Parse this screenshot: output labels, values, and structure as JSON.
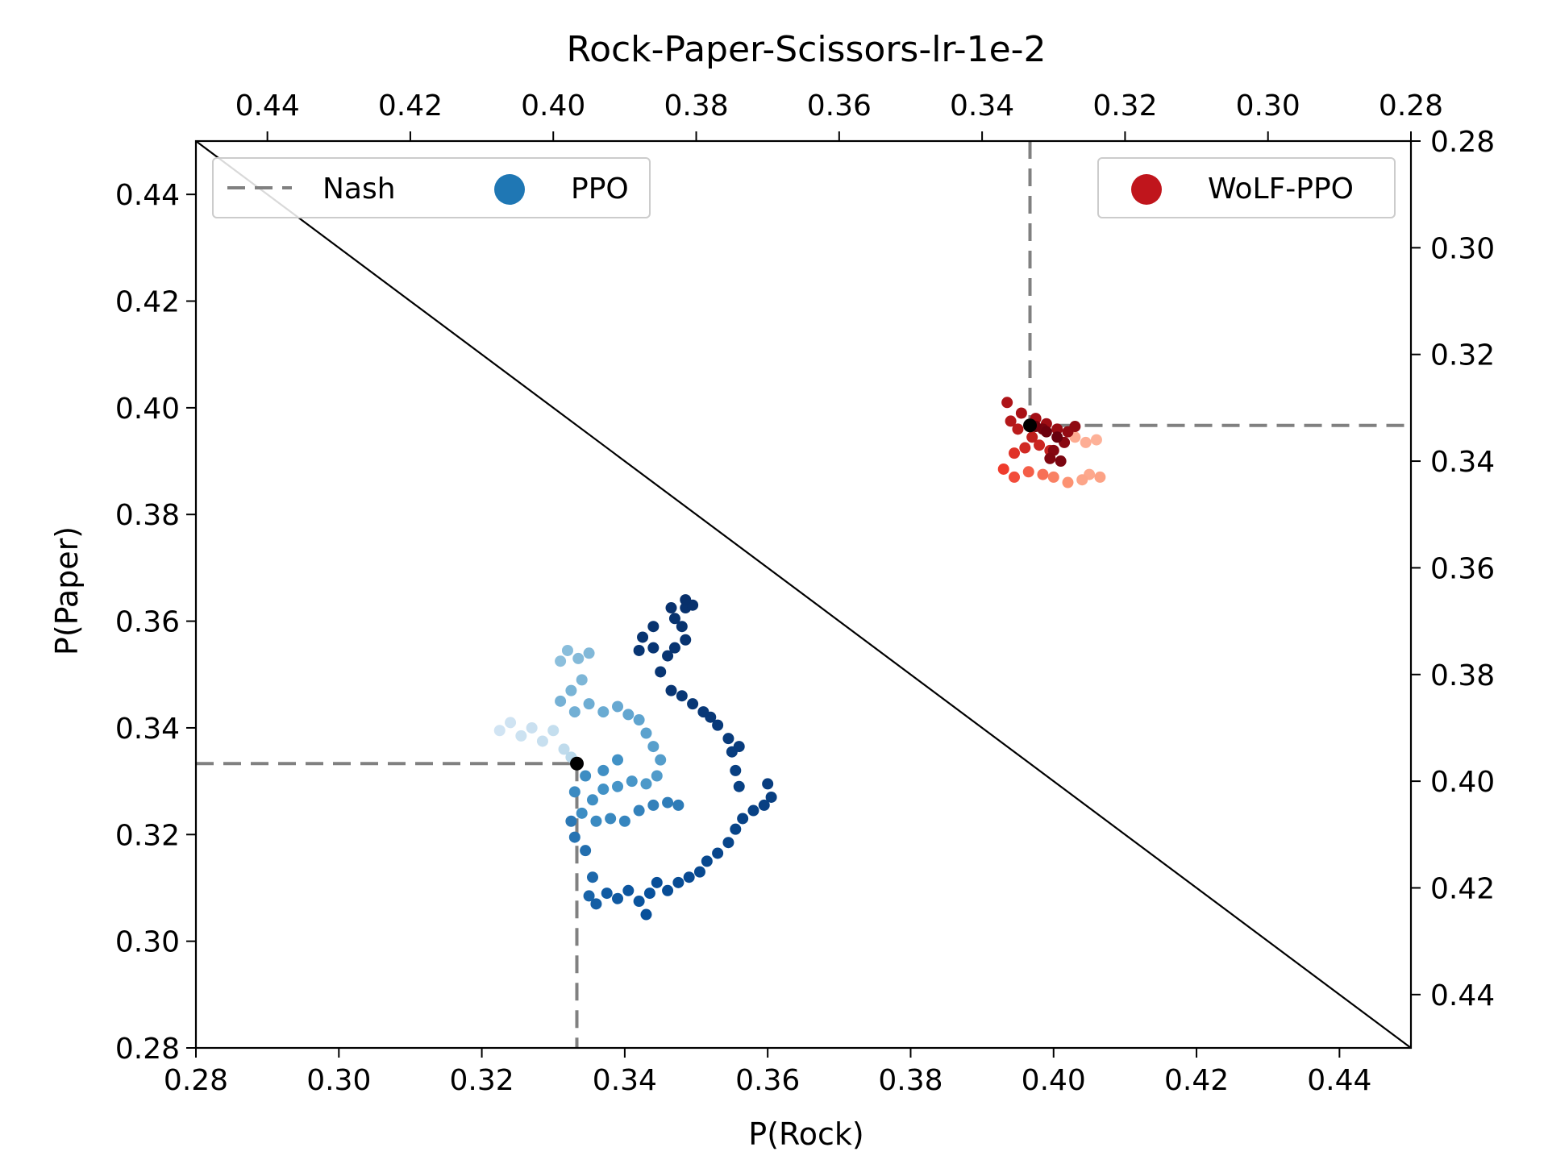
{
  "chart_data": {
    "type": "scatter",
    "title": "Rock-Paper-Scissors-lr-1e-2",
    "xlabel": "P(Rock)",
    "ylabel": "P(Paper)",
    "xlim": [
      0.28,
      0.45
    ],
    "ylim": [
      0.28,
      0.45
    ],
    "x_ticks": [
      "0.28",
      "0.30",
      "0.32",
      "0.34",
      "0.36",
      "0.38",
      "0.40",
      "0.42",
      "0.44"
    ],
    "y_ticks": [
      "0.28",
      "0.30",
      "0.32",
      "0.34",
      "0.36",
      "0.38",
      "0.40",
      "0.42",
      "0.44"
    ],
    "top_axis": {
      "ticks": [
        "0.44",
        "0.42",
        "0.40",
        "0.38",
        "0.36",
        "0.34",
        "0.32",
        "0.30",
        "0.28"
      ],
      "description": "secondary axis, value = 1 - x - 0.27 mapping reversed"
    },
    "right_axis": {
      "ticks": [
        "0.28",
        "0.30",
        "0.32",
        "0.34",
        "0.36",
        "0.38",
        "0.40",
        "0.42",
        "0.44"
      ],
      "description": "secondary axis reversed"
    },
    "grid": false,
    "legend_left": {
      "placement": "upper-left",
      "entries": [
        "Nash",
        "PPO"
      ]
    },
    "legend_right": {
      "placement": "upper-right",
      "entries": [
        "WoLF-PPO"
      ]
    },
    "colors": {
      "ppo": "#1f77b4",
      "wolf": "#c0151c",
      "nash": "#808080",
      "diagonal": "#000000",
      "marker": "#000000"
    },
    "nash_lines": [
      {
        "player": "PPO",
        "x": 0.3333,
        "y": 0.3333
      },
      {
        "player": "WoLF-PPO",
        "x": 0.3967,
        "y": 0.3967
      }
    ],
    "diagonal": [
      [
        0.28,
        0.45
      ],
      [
        0.45,
        0.28
      ]
    ],
    "markers": [
      {
        "series": "PPO",
        "x": 0.3333,
        "y": 0.3333
      },
      {
        "series": "WoLF-PPO",
        "x": 0.3967,
        "y": 0.3967
      }
    ],
    "series": [
      {
        "name": "PPO",
        "color_scale": "Blues",
        "points": [
          [
            0.3225,
            0.3395,
            0.05
          ],
          [
            0.324,
            0.341,
            0.06
          ],
          [
            0.3255,
            0.3385,
            0.07
          ],
          [
            0.327,
            0.34,
            0.08
          ],
          [
            0.3285,
            0.3375,
            0.09
          ],
          [
            0.33,
            0.3395,
            0.1
          ],
          [
            0.3315,
            0.336,
            0.12
          ],
          [
            0.3325,
            0.3345,
            0.14
          ],
          [
            0.331,
            0.3525,
            0.3
          ],
          [
            0.332,
            0.3545,
            0.31
          ],
          [
            0.3335,
            0.353,
            0.32
          ],
          [
            0.335,
            0.354,
            0.33
          ],
          [
            0.334,
            0.349,
            0.34
          ],
          [
            0.3325,
            0.347,
            0.35
          ],
          [
            0.331,
            0.345,
            0.36
          ],
          [
            0.333,
            0.343,
            0.37
          ],
          [
            0.335,
            0.3445,
            0.38
          ],
          [
            0.337,
            0.343,
            0.39
          ],
          [
            0.339,
            0.344,
            0.4
          ],
          [
            0.3405,
            0.3425,
            0.41
          ],
          [
            0.342,
            0.3415,
            0.42
          ],
          [
            0.343,
            0.339,
            0.43
          ],
          [
            0.344,
            0.3365,
            0.44
          ],
          [
            0.345,
            0.334,
            0.45
          ],
          [
            0.3445,
            0.331,
            0.46
          ],
          [
            0.343,
            0.3295,
            0.47
          ],
          [
            0.341,
            0.33,
            0.48
          ],
          [
            0.339,
            0.329,
            0.49
          ],
          [
            0.337,
            0.3285,
            0.5
          ],
          [
            0.3355,
            0.3265,
            0.51
          ],
          [
            0.334,
            0.324,
            0.52
          ],
          [
            0.336,
            0.3225,
            0.53
          ],
          [
            0.338,
            0.323,
            0.54
          ],
          [
            0.34,
            0.3225,
            0.55
          ],
          [
            0.342,
            0.3245,
            0.56
          ],
          [
            0.344,
            0.3255,
            0.57
          ],
          [
            0.346,
            0.326,
            0.58
          ],
          [
            0.3475,
            0.3255,
            0.59
          ],
          [
            0.339,
            0.334,
            0.5
          ],
          [
            0.337,
            0.332,
            0.51
          ],
          [
            0.3345,
            0.331,
            0.52
          ],
          [
            0.333,
            0.328,
            0.53
          ],
          [
            0.3325,
            0.3225,
            0.6
          ],
          [
            0.333,
            0.3195,
            0.62
          ],
          [
            0.3345,
            0.317,
            0.64
          ],
          [
            0.3355,
            0.312,
            0.66
          ],
          [
            0.335,
            0.3085,
            0.68
          ],
          [
            0.336,
            0.307,
            0.7
          ],
          [
            0.3375,
            0.309,
            0.71
          ],
          [
            0.339,
            0.308,
            0.72
          ],
          [
            0.3405,
            0.3095,
            0.73
          ],
          [
            0.342,
            0.3075,
            0.74
          ],
          [
            0.3435,
            0.309,
            0.75
          ],
          [
            0.343,
            0.305,
            0.76
          ],
          [
            0.3445,
            0.311,
            0.77
          ],
          [
            0.346,
            0.3095,
            0.78
          ],
          [
            0.3475,
            0.311,
            0.79
          ],
          [
            0.349,
            0.312,
            0.8
          ],
          [
            0.3505,
            0.313,
            0.81
          ],
          [
            0.3515,
            0.315,
            0.82
          ],
          [
            0.353,
            0.3165,
            0.83
          ],
          [
            0.3545,
            0.3185,
            0.84
          ],
          [
            0.3555,
            0.321,
            0.85
          ],
          [
            0.3565,
            0.323,
            0.86
          ],
          [
            0.358,
            0.3245,
            0.87
          ],
          [
            0.3595,
            0.3255,
            0.88
          ],
          [
            0.3605,
            0.327,
            0.89
          ],
          [
            0.36,
            0.3295,
            0.9
          ],
          [
            0.356,
            0.329,
            0.88
          ],
          [
            0.3555,
            0.332,
            0.89
          ],
          [
            0.355,
            0.3355,
            0.9
          ],
          [
            0.356,
            0.3365,
            0.91
          ],
          [
            0.3545,
            0.338,
            0.92
          ],
          [
            0.353,
            0.3405,
            0.93
          ],
          [
            0.352,
            0.342,
            0.94
          ],
          [
            0.351,
            0.343,
            0.94
          ],
          [
            0.3495,
            0.3445,
            0.95
          ],
          [
            0.348,
            0.346,
            0.95
          ],
          [
            0.3465,
            0.347,
            0.96
          ],
          [
            0.345,
            0.3505,
            0.96
          ],
          [
            0.346,
            0.3535,
            0.97
          ],
          [
            0.347,
            0.355,
            0.97
          ],
          [
            0.3485,
            0.3565,
            0.98
          ],
          [
            0.348,
            0.359,
            0.98
          ],
          [
            0.347,
            0.3605,
            0.98
          ],
          [
            0.3485,
            0.3625,
            0.99
          ],
          [
            0.3495,
            0.363,
            0.99
          ],
          [
            0.3485,
            0.364,
            1.0
          ],
          [
            0.3465,
            0.3625,
            0.99
          ],
          [
            0.344,
            0.359,
            0.98
          ],
          [
            0.3425,
            0.357,
            0.97
          ],
          [
            0.344,
            0.355,
            0.96
          ],
          [
            0.342,
            0.3545,
            0.96
          ]
        ]
      },
      {
        "name": "WoLF-PPO",
        "color_scale": "Reds",
        "points": [
          [
            0.406,
            0.394,
            0.15
          ],
          [
            0.4045,
            0.3935,
            0.16
          ],
          [
            0.403,
            0.3945,
            0.17
          ],
          [
            0.405,
            0.3875,
            0.18
          ],
          [
            0.404,
            0.3865,
            0.19
          ],
          [
            0.4065,
            0.387,
            0.2
          ],
          [
            0.402,
            0.386,
            0.25
          ],
          [
            0.4,
            0.387,
            0.3
          ],
          [
            0.3985,
            0.3875,
            0.35
          ],
          [
            0.3965,
            0.388,
            0.4
          ],
          [
            0.3945,
            0.387,
            0.45
          ],
          [
            0.393,
            0.3885,
            0.5
          ],
          [
            0.3945,
            0.3915,
            0.55
          ],
          [
            0.396,
            0.3925,
            0.6
          ],
          [
            0.398,
            0.393,
            0.62
          ],
          [
            0.3995,
            0.392,
            0.64
          ],
          [
            0.397,
            0.3945,
            0.66
          ],
          [
            0.395,
            0.396,
            0.68
          ],
          [
            0.394,
            0.3975,
            0.7
          ],
          [
            0.3935,
            0.401,
            0.72
          ],
          [
            0.3955,
            0.399,
            0.74
          ],
          [
            0.3975,
            0.398,
            0.76
          ],
          [
            0.399,
            0.397,
            0.78
          ],
          [
            0.4005,
            0.396,
            0.8
          ],
          [
            0.402,
            0.3955,
            0.82
          ],
          [
            0.403,
            0.3965,
            0.84
          ],
          [
            0.4015,
            0.3935,
            0.86
          ],
          [
            0.4,
            0.392,
            0.88
          ],
          [
            0.3995,
            0.3905,
            0.9
          ],
          [
            0.401,
            0.39,
            0.92
          ],
          [
            0.3985,
            0.396,
            0.94
          ],
          [
            0.3975,
            0.3965,
            0.96
          ],
          [
            0.399,
            0.3955,
            0.98
          ],
          [
            0.4005,
            0.3945,
            1.0
          ]
        ]
      }
    ]
  }
}
